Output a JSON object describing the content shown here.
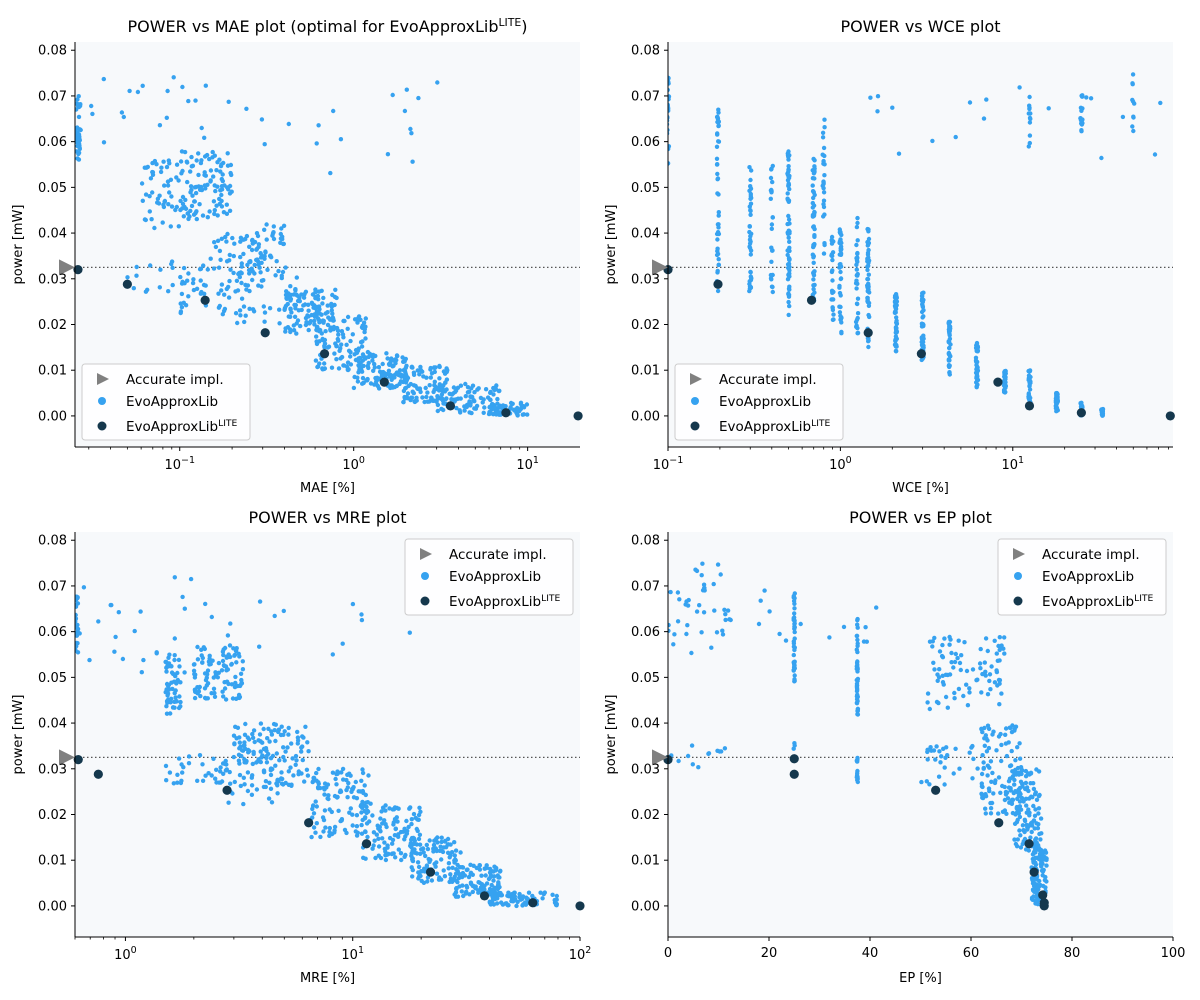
{
  "colors": {
    "plot_bg": "#f7f9fb",
    "accurate": "#808080",
    "lib": "#36a2f0",
    "lite": "#15384d",
    "refline": "#555555"
  },
  "legend_labels": {
    "accurate": "Accurate impl.",
    "lib": "EvoApproxLib",
    "lite_main": "EvoApproxLib",
    "lite_sup": "LITE"
  },
  "chart_data": [
    {
      "type": "scatter",
      "title": "POWER vs MAE plot (optimal for EvoApproxLib",
      "title_sup": "LITE",
      "title_tail": ")",
      "xlabel": "MAE [%]",
      "ylabel": "power [mW]",
      "xscale": "log",
      "xlim": [
        0.025,
        20
      ],
      "ylim": [
        -0.0068,
        0.0818
      ],
      "xticks": [
        {
          "v": 0.1,
          "b": "10",
          "e": "−1"
        },
        {
          "v": 1,
          "b": "10",
          "e": "0"
        },
        {
          "v": 10,
          "b": "10",
          "e": "1"
        }
      ],
      "yticks": [
        "0.00",
        "0.01",
        "0.02",
        "0.03",
        "0.04",
        "0.05",
        "0.06",
        "0.07",
        "0.08"
      ],
      "legend_position": "bottom-left",
      "accurate": {
        "x": 0.025,
        "y": 0.0325
      },
      "lite": [
        [
          0.026,
          0.032
        ],
        [
          0.05,
          0.0288
        ],
        [
          0.14,
          0.0253
        ],
        [
          0.31,
          0.0182
        ],
        [
          0.68,
          0.0136
        ],
        [
          1.5,
          0.0074
        ],
        [
          3.6,
          0.0022
        ],
        [
          7.5,
          0.0007
        ],
        [
          19.5,
          0.0
        ]
      ],
      "lib_clusters": [
        {
          "x": [
            0.025,
            0.027
          ],
          "y": [
            0.056,
            0.07
          ],
          "n": 35
        },
        {
          "x": [
            0.03,
            0.3
          ],
          "y": [
            0.055,
            0.075
          ],
          "n": 22
        },
        {
          "x": [
            0.3,
            5.5
          ],
          "y": [
            0.053,
            0.073
          ],
          "n": 16
        },
        {
          "x": [
            0.06,
            0.1
          ],
          "y": [
            0.041,
            0.056
          ],
          "n": 50
        },
        {
          "x": [
            0.1,
            0.2
          ],
          "y": [
            0.043,
            0.058
          ],
          "n": 110
        },
        {
          "x": [
            0.15,
            0.3
          ],
          "y": [
            0.031,
            0.04
          ],
          "n": 50
        },
        {
          "x": [
            0.25,
            0.4
          ],
          "y": [
            0.03,
            0.042
          ],
          "n": 45
        },
        {
          "x": [
            0.05,
            0.15
          ],
          "y": [
            0.027,
            0.034
          ],
          "n": 30
        },
        {
          "x": [
            0.1,
            0.3
          ],
          "y": [
            0.022,
            0.03
          ],
          "n": 35
        },
        {
          "x": [
            0.2,
            0.5
          ],
          "y": [
            0.02,
            0.033
          ],
          "n": 35
        },
        {
          "x": [
            0.4,
            0.8
          ],
          "y": [
            0.018,
            0.028
          ],
          "n": 110
        },
        {
          "x": [
            0.6,
            1.2
          ],
          "y": [
            0.01,
            0.022
          ],
          "n": 110
        },
        {
          "x": [
            1,
            2
          ],
          "y": [
            0.006,
            0.014
          ],
          "n": 110
        },
        {
          "x": [
            1.8,
            3.5
          ],
          "y": [
            0.003,
            0.011
          ],
          "n": 110
        },
        {
          "x": [
            3,
            7
          ],
          "y": [
            0.0005,
            0.007
          ],
          "n": 90
        },
        {
          "x": [
            6,
            10
          ],
          "y": [
            0.0,
            0.003
          ],
          "n": 60
        }
      ]
    },
    {
      "type": "scatter",
      "title": "POWER vs WCE plot",
      "xlabel": "WCE [%]",
      "ylabel": "power [mW]",
      "xscale": "log",
      "xlim": [
        0.1,
        85
      ],
      "ylim": [
        -0.0068,
        0.0818
      ],
      "xticks": [
        {
          "v": 0.1,
          "b": "10",
          "e": "−1"
        },
        {
          "v": 1,
          "b": "10",
          "e": "0"
        },
        {
          "v": 10,
          "b": "10",
          "e": "1"
        }
      ],
      "yticks": [
        "0.00",
        "0.01",
        "0.02",
        "0.03",
        "0.04",
        "0.05",
        "0.06",
        "0.07",
        "0.08"
      ],
      "legend_position": "bottom-left",
      "accurate": {
        "x": 0.1,
        "y": 0.0325
      },
      "lite": [
        [
          0.1,
          0.032
        ],
        [
          0.195,
          0.0288
        ],
        [
          0.68,
          0.0253
        ],
        [
          1.45,
          0.0182
        ],
        [
          2.95,
          0.0136
        ],
        [
          8.2,
          0.0074
        ],
        [
          12.5,
          0.0022
        ],
        [
          25,
          0.0007
        ],
        [
          82,
          0.0
        ]
      ],
      "lib_columns": [
        {
          "x": 0.1,
          "y": [
            0.055,
            0.074
          ],
          "n": 30
        },
        {
          "x": 0.195,
          "y": [
            0.027,
            0.067
          ],
          "n": 45
        },
        {
          "x": 0.3,
          "y": [
            0.027,
            0.055
          ],
          "n": 40
        },
        {
          "x": 0.4,
          "y": [
            0.027,
            0.055
          ],
          "n": 25
        },
        {
          "x": 0.5,
          "y": [
            0.022,
            0.058
          ],
          "n": 70
        },
        {
          "x": 0.7,
          "y": [
            0.022,
            0.057
          ],
          "n": 55
        },
        {
          "x": 0.8,
          "y": [
            0.035,
            0.066
          ],
          "n": 25
        },
        {
          "x": 0.9,
          "y": [
            0.02,
            0.04
          ],
          "n": 25
        },
        {
          "x": 1.0,
          "y": [
            0.018,
            0.041
          ],
          "n": 40
        },
        {
          "x": 1.25,
          "y": [
            0.018,
            0.044
          ],
          "n": 35
        },
        {
          "x": 1.45,
          "y": [
            0.015,
            0.041
          ],
          "n": 50
        },
        {
          "x": 2.1,
          "y": [
            0.014,
            0.027
          ],
          "n": 50
        },
        {
          "x": 3.0,
          "y": [
            0.012,
            0.027
          ],
          "n": 45
        },
        {
          "x": 4.3,
          "y": [
            0.009,
            0.021
          ],
          "n": 40
        },
        {
          "x": 6.2,
          "y": [
            0.006,
            0.016
          ],
          "n": 40
        },
        {
          "x": 9.0,
          "y": [
            0.005,
            0.01
          ],
          "n": 35
        },
        {
          "x": 12.5,
          "y": [
            0.002,
            0.01
          ],
          "n": 35
        },
        {
          "x": 18,
          "y": [
            0.001,
            0.005
          ],
          "n": 30
        },
        {
          "x": 25,
          "y": [
            0.0,
            0.003
          ],
          "n": 25
        },
        {
          "x": 33,
          "y": [
            0.0,
            0.0015
          ],
          "n": 15
        },
        {
          "x": 25,
          "y": [
            0.062,
            0.072
          ],
          "n": 15
        },
        {
          "x": 12.5,
          "y": [
            0.055,
            0.072
          ],
          "n": 12
        },
        {
          "x": 50,
          "y": [
            0.058,
            0.075
          ],
          "n": 10
        }
      ],
      "lib_clusters": [
        {
          "x": [
            1,
            80
          ],
          "y": [
            0.056,
            0.072
          ],
          "n": 18
        }
      ]
    },
    {
      "type": "scatter",
      "title": "POWER vs MRE plot",
      "xlabel": "MRE [%]",
      "ylabel": "power [mW]",
      "xscale": "log",
      "xlim": [
        0.6,
        100
      ],
      "ylim": [
        -0.0068,
        0.0818
      ],
      "xticks": [
        {
          "v": 1,
          "b": "10",
          "e": "0"
        },
        {
          "v": 10,
          "b": "10",
          "e": "1"
        },
        {
          "v": 100,
          "b": "10",
          "e": "2"
        }
      ],
      "yticks": [
        "0.00",
        "0.01",
        "0.02",
        "0.03",
        "0.04",
        "0.05",
        "0.06",
        "0.07",
        "0.08"
      ],
      "legend_position": "top-right",
      "accurate": {
        "x": 0.6,
        "y": 0.0325
      },
      "lite": [
        [
          0.62,
          0.032
        ],
        [
          0.76,
          0.0288
        ],
        [
          2.8,
          0.0253
        ],
        [
          6.4,
          0.0182
        ],
        [
          11.5,
          0.0136
        ],
        [
          22,
          0.0074
        ],
        [
          38,
          0.0022
        ],
        [
          62,
          0.0007
        ],
        [
          100,
          0.0
        ]
      ],
      "lib_clusters": [
        {
          "x": [
            0.6,
            0.62
          ],
          "y": [
            0.055,
            0.068
          ],
          "n": 30
        },
        {
          "x": [
            0.6,
            2
          ],
          "y": [
            0.05,
            0.073
          ],
          "n": 22
        },
        {
          "x": [
            2,
            20
          ],
          "y": [
            0.055,
            0.068
          ],
          "n": 14
        },
        {
          "x": [
            1.5,
            1.75
          ],
          "y": [
            0.042,
            0.055
          ],
          "n": 60
        },
        {
          "x": [
            2,
            3.3
          ],
          "y": [
            0.045,
            0.057
          ],
          "n": 110
        },
        {
          "x": [
            1.5,
            3
          ],
          "y": [
            0.026,
            0.033
          ],
          "n": 40
        },
        {
          "x": [
            3,
            4
          ],
          "y": [
            0.031,
            0.04
          ],
          "n": 50
        },
        {
          "x": [
            4,
            6.5
          ],
          "y": [
            0.026,
            0.04
          ],
          "n": 80
        },
        {
          "x": [
            2.8,
            5
          ],
          "y": [
            0.022,
            0.03
          ],
          "n": 30
        },
        {
          "x": [
            6.5,
            12
          ],
          "y": [
            0.015,
            0.03
          ],
          "n": 120
        },
        {
          "x": [
            11,
            20
          ],
          "y": [
            0.01,
            0.022
          ],
          "n": 110
        },
        {
          "x": [
            18,
            30
          ],
          "y": [
            0.005,
            0.015
          ],
          "n": 110
        },
        {
          "x": [
            28,
            45
          ],
          "y": [
            0.002,
            0.009
          ],
          "n": 110
        },
        {
          "x": [
            40,
            80
          ],
          "y": [
            0.0,
            0.003
          ],
          "n": 80
        }
      ]
    },
    {
      "type": "scatter",
      "title": "POWER vs EP plot",
      "xlabel": "EP [%]",
      "ylabel": "power [mW]",
      "xscale": "linear",
      "xlim": [
        0,
        100
      ],
      "ylim": [
        -0.0068,
        0.0818
      ],
      "xticks": [
        {
          "v": 0,
          "t": "0"
        },
        {
          "v": 20,
          "t": "20"
        },
        {
          "v": 40,
          "t": "40"
        },
        {
          "v": 60,
          "t": "60"
        },
        {
          "v": 80,
          "t": "80"
        },
        {
          "v": 100,
          "t": "100"
        }
      ],
      "yticks": [
        "0.00",
        "0.01",
        "0.02",
        "0.03",
        "0.04",
        "0.05",
        "0.06",
        "0.07",
        "0.08"
      ],
      "legend_position": "top-right",
      "accurate": {
        "x": 0,
        "y": 0.0325
      },
      "lite": [
        [
          0,
          0.032
        ],
        [
          25,
          0.0322
        ],
        [
          25,
          0.0288
        ],
        [
          53,
          0.0253
        ],
        [
          65.5,
          0.0182
        ],
        [
          71.5,
          0.0136
        ],
        [
          72.5,
          0.0074
        ],
        [
          74.2,
          0.0024
        ],
        [
          74.5,
          0.0007
        ],
        [
          74.5,
          0.0
        ]
      ],
      "lib_columns": [
        {
          "x": 25,
          "y": [
            0.049,
            0.069
          ],
          "n": 40
        },
        {
          "x": 37.5,
          "y": [
            0.041,
            0.063
          ],
          "n": 45
        },
        {
          "x": 37.5,
          "y": [
            0.027,
            0.033
          ],
          "n": 12
        },
        {
          "x": 25,
          "y": [
            0.034,
            0.036
          ],
          "n": 3
        }
      ],
      "lib_clusters": [
        {
          "x": [
            0,
            12
          ],
          "y": [
            0.055,
            0.075
          ],
          "n": 40
        },
        {
          "x": [
            12,
            45
          ],
          "y": [
            0.057,
            0.07
          ],
          "n": 15
        },
        {
          "x": [
            50,
            67
          ],
          "y": [
            0.043,
            0.059
          ],
          "n": 90
        },
        {
          "x": [
            62,
            70
          ],
          "y": [
            0.02,
            0.04
          ],
          "n": 110
        },
        {
          "x": [
            50,
            62
          ],
          "y": [
            0.026,
            0.035
          ],
          "n": 30
        },
        {
          "x": [
            68,
            74
          ],
          "y": [
            0.012,
            0.03
          ],
          "n": 120
        },
        {
          "x": [
            72,
            75
          ],
          "y": [
            0.0,
            0.014
          ],
          "n": 110
        },
        {
          "x": [
            0,
            12
          ],
          "y": [
            0.03,
            0.036
          ],
          "n": 14
        }
      ]
    }
  ]
}
